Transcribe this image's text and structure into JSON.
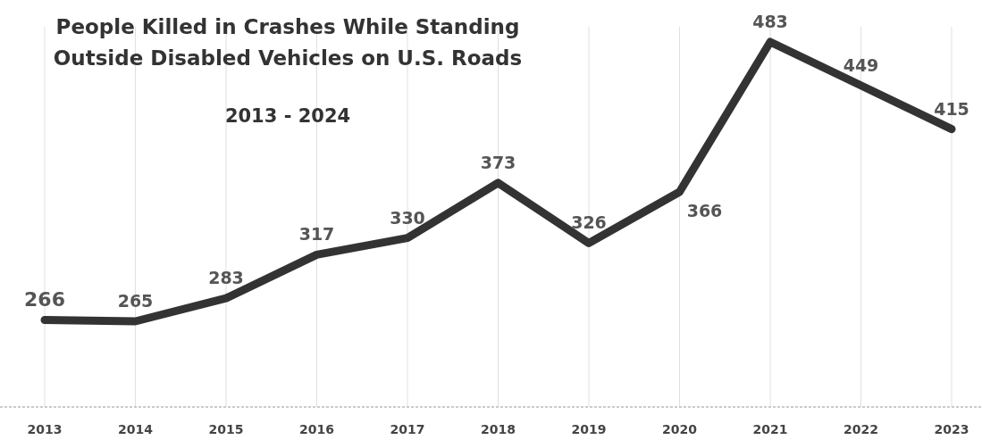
{
  "chart_data": {
    "type": "line",
    "title": "People Killed in Crashes While Standing\nOutside Disabled Vehicles on U.S. Roads",
    "subtitle": "2013 - 2024",
    "categories": [
      "2013",
      "2014",
      "2015",
      "2016",
      "2017",
      "2018",
      "2019",
      "2020",
      "2021",
      "2022",
      "2023"
    ],
    "series": [
      {
        "color": "#333333",
        "values": [
          266,
          265,
          283,
          317,
          330,
          373,
          326,
          366,
          483,
          449,
          415
        ]
      }
    ],
    "data_labels": true,
    "grid": "x",
    "marker": "none",
    "line_style": "solid"
  }
}
